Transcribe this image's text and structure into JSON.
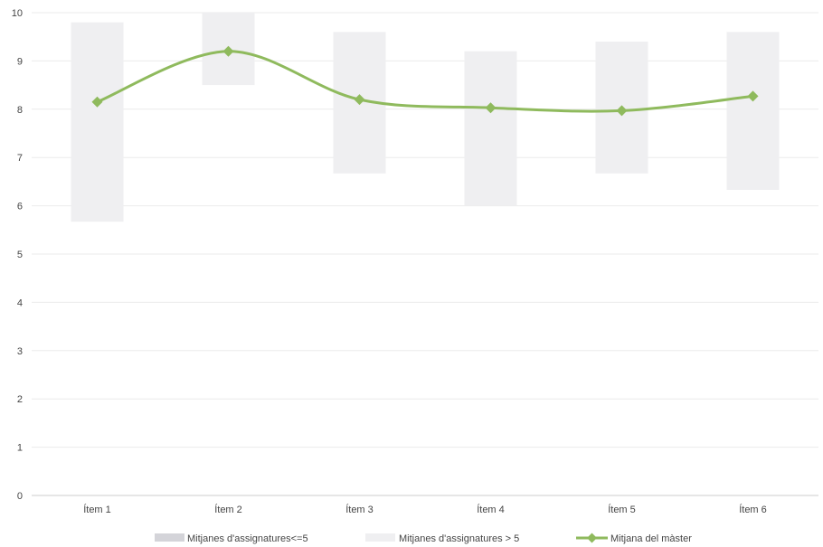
{
  "chart_data": {
    "type": "bar",
    "categories": [
      "Ítem 1",
      "Ítem 2",
      "Ítem 3",
      "Ítem 4",
      "Ítem 5",
      "Ítem 6"
    ],
    "ylim": [
      0,
      10
    ],
    "yticks": [
      "0",
      "1",
      "2",
      "3",
      "4",
      "5",
      "6",
      "7",
      "8",
      "9",
      "10"
    ],
    "grid": true,
    "legend_position": "bottom",
    "series": [
      {
        "name": "Mitjanes d'assignatures<=5",
        "kind": "range-bar",
        "color": "#d4d4d9",
        "ranges": [
          null,
          null,
          null,
          null,
          null,
          null
        ]
      },
      {
        "name": "Mitjanes d'assignatures > 5",
        "kind": "range-bar",
        "color": "#efeff1",
        "ranges": [
          [
            5.67,
            9.8
          ],
          [
            8.5,
            10
          ],
          [
            6.67,
            9.6
          ],
          [
            6.0,
            9.2
          ],
          [
            6.67,
            9.4
          ],
          [
            6.33,
            9.6
          ]
        ]
      },
      {
        "name": "Mitjana del màster",
        "kind": "line",
        "color": "#8fba5d",
        "marker": "diamond",
        "values": [
          8.15,
          9.2,
          8.2,
          8.03,
          7.97,
          8.27
        ]
      }
    ]
  }
}
